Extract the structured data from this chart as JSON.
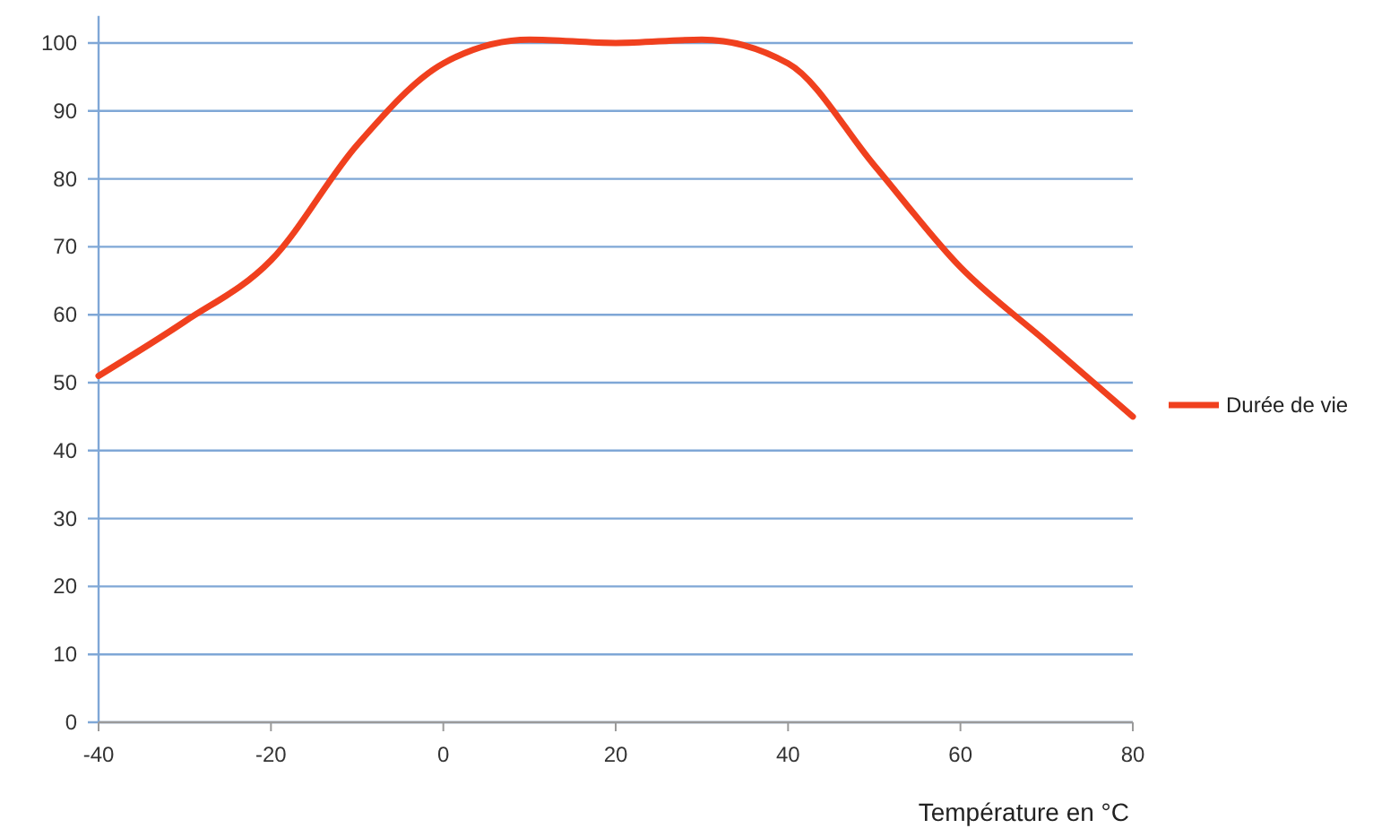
{
  "chart_data": {
    "type": "line",
    "xlabel": "Température en °C",
    "x": [
      -40,
      -30,
      -20,
      -10,
      0,
      10,
      20,
      30,
      40,
      50,
      60,
      70,
      80
    ],
    "series": [
      {
        "name": "Durée de vie",
        "color": "#f0401e",
        "values": [
          51,
          59,
          68,
          85,
          97,
          100.5,
          100,
          100.5,
          97,
          82,
          67,
          56,
          45
        ]
      }
    ],
    "xlim": [
      -40,
      80
    ],
    "xticks": [
      -40,
      -20,
      0,
      20,
      40,
      60,
      80
    ],
    "ylim": [
      0,
      104
    ],
    "yticks": [
      0,
      10,
      20,
      30,
      40,
      50,
      60,
      70,
      80,
      90,
      100
    ],
    "grid": "y",
    "legend": "right",
    "marker": "none",
    "line_style": "solid"
  }
}
